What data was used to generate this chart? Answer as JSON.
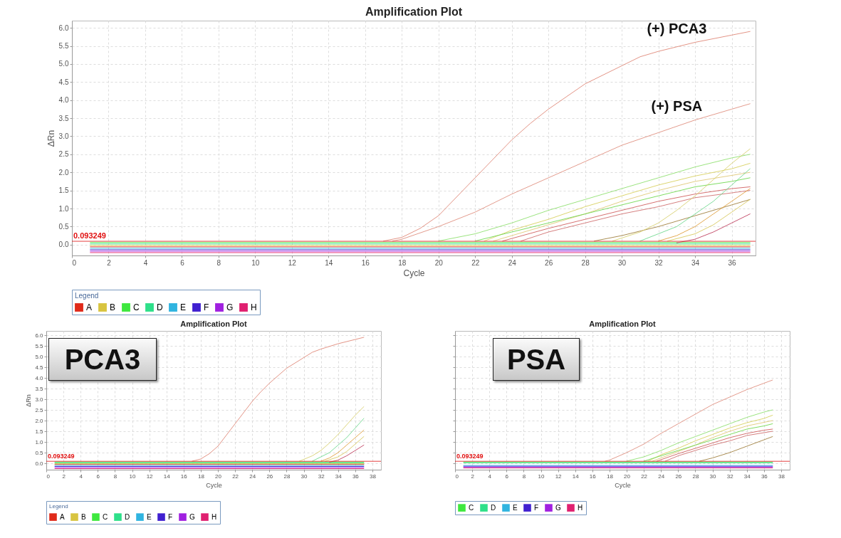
{
  "chart_data": [
    {
      "type": "line",
      "title": "Amplification Plot",
      "xlabel": "Cycle",
      "ylabel": "ΔRn",
      "legend_title": "Legend",
      "legend": "bottom",
      "grid": true,
      "marker": "none",
      "line_style": "solid",
      "xlim": [
        0,
        37.3
      ],
      "xticks": [
        0,
        2,
        4,
        6,
        8,
        10,
        12,
        14,
        16,
        18,
        20,
        22,
        24,
        26,
        28,
        30,
        32,
        34,
        36
      ],
      "ylim": [
        -0.3,
        6.2
      ],
      "yticks": [
        {
          "value": 0,
          "label": "0.0"
        },
        {
          "value": 0.5,
          "label": "0.5"
        },
        {
          "value": 1,
          "label": "1.0"
        },
        {
          "value": 1.5,
          "label": "1.5"
        },
        {
          "value": 2,
          "label": "2.0"
        },
        {
          "value": 2.5,
          "label": "2.5"
        },
        {
          "value": 3,
          "label": "3.0"
        },
        {
          "value": 3.5,
          "label": "3.5"
        },
        {
          "value": 4,
          "label": "4.0"
        },
        {
          "value": 4.5,
          "label": "4.5"
        },
        {
          "value": 5,
          "label": "5.0"
        },
        {
          "value": 5.5,
          "label": "5.5"
        },
        {
          "value": 6,
          "label": "6.0"
        }
      ],
      "ref_lines": [
        {
          "axis": "y",
          "value": 0.093249,
          "label": "0.093249",
          "color": "#e01010"
        }
      ],
      "annotations": [
        {
          "text": "(+) PCA3",
          "x": 33,
          "y": 5.45
        },
        {
          "text": "(+) PSA",
          "x": 33,
          "y": 3.3
        }
      ],
      "series": [
        {
          "name": "A",
          "color": "#e02a1a",
          "x": [
            1,
            37
          ],
          "values": [
            -0.06,
            -0.06
          ]
        },
        {
          "name": "B",
          "color": "#d8c440",
          "x": [
            1,
            37
          ],
          "values": [
            -0.02,
            -0.02
          ]
        },
        {
          "name": "C",
          "color": "#3ee83e",
          "x": [
            1,
            37
          ],
          "values": [
            0.06,
            0.06
          ]
        },
        {
          "name": "D",
          "color": "#2ee08a",
          "x": [
            1,
            37
          ],
          "values": [
            0.02,
            0.02
          ]
        },
        {
          "name": "E",
          "color": "#30b4e0",
          "x": [
            1,
            37
          ],
          "values": [
            -0.1,
            -0.1
          ]
        },
        {
          "name": "F",
          "color": "#4020d0",
          "x": [
            1,
            37
          ],
          "values": [
            -0.14,
            -0.14
          ]
        },
        {
          "name": "G",
          "color": "#a020e0",
          "x": [
            1,
            37
          ],
          "values": [
            -0.18,
            -0.18
          ]
        },
        {
          "name": "H",
          "color": "#e02070",
          "x": [
            1,
            37
          ],
          "values": [
            -0.22,
            -0.22
          ]
        },
        {
          "color": "#e08878",
          "x": [
            17,
            18,
            19,
            20,
            22,
            24,
            25,
            26,
            28,
            30,
            31,
            32,
            34,
            36,
            37
          ],
          "values": [
            0.1,
            0.2,
            0.45,
            0.8,
            1.85,
            2.9,
            3.35,
            3.75,
            4.45,
            4.95,
            5.2,
            5.35,
            5.6,
            5.8,
            5.9
          ]
        },
        {
          "color": "#e09080",
          "x": [
            17.5,
            18,
            20,
            22,
            24,
            26,
            28,
            30,
            32,
            34,
            36,
            37
          ],
          "values": [
            0.1,
            0.15,
            0.5,
            0.9,
            1.4,
            1.85,
            2.3,
            2.75,
            3.1,
            3.45,
            3.75,
            3.9
          ]
        },
        {
          "color": "#90e070",
          "x": [
            20,
            22,
            24,
            26,
            28,
            30,
            32,
            34,
            36,
            37
          ],
          "values": [
            0.1,
            0.3,
            0.6,
            0.95,
            1.25,
            1.55,
            1.85,
            2.15,
            2.4,
            2.5
          ]
        },
        {
          "color": "#d8d060",
          "x": [
            22.5,
            24,
            26,
            28,
            30,
            32,
            34,
            36,
            37
          ],
          "values": [
            0.1,
            0.4,
            0.7,
            1.05,
            1.35,
            1.65,
            1.9,
            2.1,
            2.25
          ]
        },
        {
          "color": "#e0c878",
          "x": [
            23,
            26,
            28,
            30,
            32,
            34,
            37
          ],
          "values": [
            0.1,
            0.55,
            0.85,
            1.2,
            1.5,
            1.75,
            2.0
          ]
        },
        {
          "color": "#70d850",
          "x": [
            22,
            24,
            26,
            28,
            30,
            32,
            34,
            36,
            37
          ],
          "values": [
            0.1,
            0.35,
            0.6,
            0.85,
            1.1,
            1.35,
            1.6,
            1.75,
            1.85
          ]
        },
        {
          "color": "#d06060",
          "x": [
            23.5,
            26,
            28,
            30,
            32,
            34,
            36,
            37
          ],
          "values": [
            0.1,
            0.45,
            0.7,
            0.95,
            1.2,
            1.4,
            1.55,
            1.6
          ]
        },
        {
          "color": "#d07070",
          "x": [
            24.5,
            26,
            28,
            30,
            32,
            34,
            37
          ],
          "values": [
            0.1,
            0.35,
            0.6,
            0.85,
            1.05,
            1.3,
            1.5
          ]
        },
        {
          "color": "#a08040",
          "x": [
            28.5,
            30,
            32,
            34,
            36,
            37
          ],
          "values": [
            0.1,
            0.25,
            0.5,
            0.8,
            1.1,
            1.25
          ]
        },
        {
          "color": "#d8d070",
          "x": [
            29.5,
            31,
            32,
            33,
            34,
            35,
            36,
            37
          ],
          "values": [
            0.1,
            0.35,
            0.6,
            0.95,
            1.35,
            1.8,
            2.25,
            2.65
          ]
        },
        {
          "color": "#70d890",
          "x": [
            31,
            32,
            33,
            34,
            35,
            36,
            37
          ],
          "values": [
            0.1,
            0.3,
            0.5,
            0.85,
            1.2,
            1.65,
            2.1
          ]
        },
        {
          "color": "#e0a040",
          "x": [
            32,
            33,
            34,
            35,
            36,
            37
          ],
          "values": [
            0.1,
            0.25,
            0.5,
            0.85,
            1.2,
            1.55
          ]
        },
        {
          "color": "#d8c860",
          "x": [
            32.5,
            34,
            35,
            36,
            37
          ],
          "values": [
            0.1,
            0.3,
            0.55,
            0.9,
            1.25
          ]
        },
        {
          "color": "#c04060",
          "x": [
            33,
            34,
            35,
            36,
            37
          ],
          "values": [
            0.05,
            0.15,
            0.35,
            0.6,
            0.85
          ]
        }
      ]
    },
    {
      "type": "line",
      "title": "Amplification Plot",
      "xlabel": "Cycle",
      "ylabel": "ΔRn",
      "legend_title": "Legend",
      "legend": "bottom",
      "grid": true,
      "marker": "none",
      "line_style": "solid",
      "xlim": [
        0,
        39
      ],
      "xticks": [
        0,
        2,
        4,
        6,
        8,
        10,
        12,
        14,
        16,
        18,
        20,
        22,
        24,
        26,
        28,
        30,
        32,
        34,
        36,
        38
      ],
      "ylim": [
        -0.3,
        6.2
      ],
      "yticks": [
        {
          "value": 0,
          "label": "0.0"
        },
        {
          "value": 0.5,
          "label": "0.5"
        },
        {
          "value": 1,
          "label": "1.0"
        },
        {
          "value": 1.5,
          "label": "1.5"
        },
        {
          "value": 2,
          "label": "2.0"
        },
        {
          "value": 2.5,
          "label": "2.5"
        },
        {
          "value": 3,
          "label": "3.0"
        },
        {
          "value": 3.5,
          "label": "3.5"
        },
        {
          "value": 4,
          "label": "4.0"
        },
        {
          "value": 4.5,
          "label": "4.5"
        },
        {
          "value": 5,
          "label": "5.0"
        },
        {
          "value": 5.5,
          "label": "5.5"
        },
        {
          "value": 6,
          "label": "6.0"
        }
      ],
      "ref_lines": [
        {
          "axis": "y",
          "value": 0.093249,
          "label": "0.093249",
          "color": "#e01010"
        }
      ],
      "annotations": [
        "PCA3"
      ],
      "series": [
        {
          "name": "A",
          "color": "#e02a1a",
          "x": [
            1,
            37
          ],
          "values": [
            -0.06,
            -0.06
          ]
        },
        {
          "name": "B",
          "color": "#d8c440",
          "x": [
            1,
            37
          ],
          "values": [
            -0.02,
            -0.02
          ]
        },
        {
          "name": "C",
          "color": "#3ee83e",
          "x": [
            1,
            37
          ],
          "values": [
            0.06,
            0.06
          ]
        },
        {
          "name": "D",
          "color": "#2ee08a",
          "x": [
            1,
            37
          ],
          "values": [
            0.02,
            0.02
          ]
        },
        {
          "name": "E",
          "color": "#30b4e0",
          "x": [
            1,
            37
          ],
          "values": [
            -0.1,
            -0.1
          ]
        },
        {
          "name": "F",
          "color": "#4020d0",
          "x": [
            1,
            37
          ],
          "values": [
            -0.15,
            -0.15
          ]
        },
        {
          "name": "G",
          "color": "#a020e0",
          "x": [
            1,
            37
          ],
          "values": [
            -0.2,
            -0.2
          ]
        },
        {
          "name": "H",
          "color": "#e02070",
          "x": [
            1,
            37
          ],
          "values": [
            -0.25,
            -0.25
          ]
        },
        {
          "color": "#e08878",
          "x": [
            17,
            18,
            19,
            20,
            22,
            24,
            25,
            26,
            28,
            30,
            31,
            32,
            34,
            36,
            37
          ],
          "values": [
            0.1,
            0.2,
            0.45,
            0.8,
            1.85,
            2.9,
            3.35,
            3.75,
            4.45,
            4.95,
            5.2,
            5.35,
            5.6,
            5.8,
            5.9
          ]
        },
        {
          "color": "#d8d070",
          "x": [
            29.5,
            31,
            32,
            33,
            34,
            35,
            36,
            37
          ],
          "values": [
            0.1,
            0.35,
            0.6,
            0.95,
            1.35,
            1.8,
            2.25,
            2.65
          ]
        },
        {
          "color": "#70d890",
          "x": [
            31,
            32,
            33,
            34,
            35,
            36,
            37
          ],
          "values": [
            0.1,
            0.3,
            0.5,
            0.85,
            1.2,
            1.65,
            2.1
          ]
        },
        {
          "color": "#e0a040",
          "x": [
            32,
            33,
            34,
            35,
            36,
            37
          ],
          "values": [
            0.1,
            0.25,
            0.5,
            0.85,
            1.2,
            1.55
          ]
        },
        {
          "color": "#d8c860",
          "x": [
            32.5,
            34,
            35,
            36,
            37
          ],
          "values": [
            0.1,
            0.3,
            0.55,
            0.9,
            1.25
          ]
        },
        {
          "color": "#c04060",
          "x": [
            33,
            34,
            35,
            36,
            37
          ],
          "values": [
            0.05,
            0.15,
            0.35,
            0.6,
            0.85
          ]
        }
      ]
    },
    {
      "type": "line",
      "title": "Amplification Plot",
      "xlabel": "Cycle",
      "legend": "bottom",
      "grid": true,
      "marker": "none",
      "line_style": "solid",
      "tick_labels": "x",
      "xlim": [
        0,
        39
      ],
      "xticks": [
        0,
        2,
        4,
        6,
        8,
        10,
        12,
        14,
        16,
        18,
        20,
        22,
        24,
        26,
        28,
        30,
        32,
        34,
        36,
        38
      ],
      "ylim": [
        -0.3,
        6.2
      ],
      "yticks": [
        0,
        0.5,
        1,
        1.5,
        2,
        2.5,
        3,
        3.5,
        4,
        4.5,
        5,
        5.5,
        6
      ],
      "ref_lines": [
        {
          "axis": "y",
          "value": 0.093249,
          "label": "0.093249",
          "color": "#e01010"
        }
      ],
      "annotations": [
        "PSA"
      ],
      "series": [
        {
          "name": "C",
          "color": "#3ee83e",
          "x": [
            1,
            37
          ],
          "values": [
            0.06,
            0.06
          ]
        },
        {
          "name": "D",
          "color": "#2ee08a",
          "x": [
            1,
            37
          ],
          "values": [
            0.02,
            0.02
          ]
        },
        {
          "name": "E",
          "color": "#30b4e0",
          "x": [
            1,
            37
          ],
          "values": [
            -0.1,
            -0.1
          ]
        },
        {
          "name": "F",
          "color": "#4020d0",
          "x": [
            1,
            37
          ],
          "values": [
            -0.14,
            -0.14
          ]
        },
        {
          "name": "G",
          "color": "#a020e0",
          "x": [
            1,
            37
          ],
          "values": [
            -0.18,
            -0.18
          ]
        },
        {
          "name": "H",
          "color": "#e02070",
          "x": [
            1,
            37
          ],
          "values": [
            -0.22,
            -0.22
          ]
        },
        {
          "color": "#e09080",
          "x": [
            17.5,
            18,
            20,
            22,
            24,
            26,
            28,
            30,
            32,
            34,
            36,
            37
          ],
          "values": [
            0.1,
            0.15,
            0.5,
            0.9,
            1.4,
            1.85,
            2.3,
            2.75,
            3.1,
            3.45,
            3.75,
            3.9
          ]
        },
        {
          "color": "#90e070",
          "x": [
            20,
            22,
            24,
            26,
            28,
            30,
            32,
            34,
            36,
            37
          ],
          "values": [
            0.1,
            0.3,
            0.6,
            0.95,
            1.25,
            1.55,
            1.85,
            2.15,
            2.4,
            2.5
          ]
        },
        {
          "color": "#d8d060",
          "x": [
            22.5,
            24,
            26,
            28,
            30,
            32,
            34,
            36,
            37
          ],
          "values": [
            0.1,
            0.4,
            0.7,
            1.05,
            1.35,
            1.65,
            1.9,
            2.1,
            2.25
          ]
        },
        {
          "color": "#e0c878",
          "x": [
            23,
            26,
            28,
            30,
            32,
            34,
            37
          ],
          "values": [
            0.1,
            0.55,
            0.85,
            1.2,
            1.5,
            1.75,
            2.0
          ]
        },
        {
          "color": "#70d850",
          "x": [
            22,
            24,
            26,
            28,
            30,
            32,
            34,
            36,
            37
          ],
          "values": [
            0.1,
            0.35,
            0.6,
            0.85,
            1.1,
            1.35,
            1.6,
            1.75,
            1.85
          ]
        },
        {
          "color": "#d06060",
          "x": [
            23.5,
            26,
            28,
            30,
            32,
            34,
            36,
            37
          ],
          "values": [
            0.1,
            0.45,
            0.7,
            0.95,
            1.2,
            1.4,
            1.55,
            1.6
          ]
        },
        {
          "color": "#d07070",
          "x": [
            24.5,
            26,
            28,
            30,
            32,
            34,
            37
          ],
          "values": [
            0.1,
            0.35,
            0.6,
            0.85,
            1.05,
            1.3,
            1.5
          ]
        },
        {
          "color": "#a08040",
          "x": [
            28.5,
            30,
            32,
            34,
            36,
            37
          ],
          "values": [
            0.1,
            0.25,
            0.5,
            0.8,
            1.1,
            1.25
          ]
        }
      ]
    }
  ]
}
